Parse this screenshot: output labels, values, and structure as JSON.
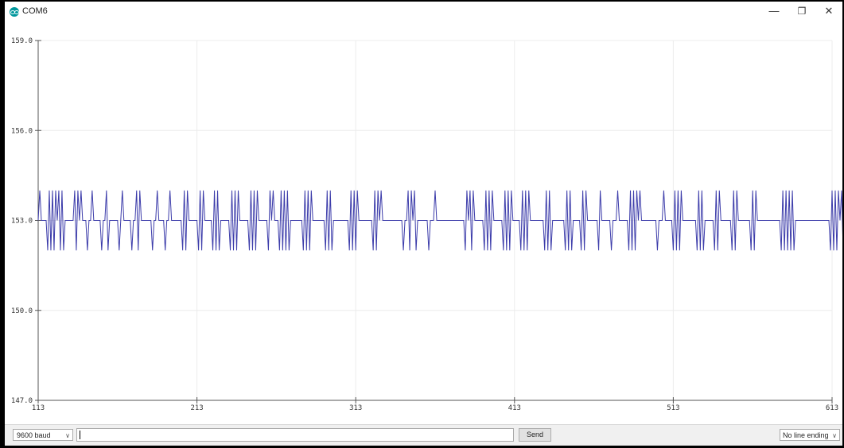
{
  "window": {
    "title": "COM6",
    "minimize_glyph": "—",
    "restore_glyph": "❐",
    "close_glyph": "✕"
  },
  "chart_data": {
    "type": "line",
    "title": "",
    "xlabel": "",
    "ylabel": "",
    "xlim": [
      113,
      613
    ],
    "ylim": [
      147.0,
      159.0
    ],
    "x_ticks": [
      "113",
      "213",
      "313",
      "413",
      "513",
      "613"
    ],
    "y_ticks": [
      "159.0",
      "156.0",
      "153.0",
      "150.0",
      "147.0"
    ],
    "grid": true,
    "series": [
      {
        "color": "#3c3caa",
        "x_start": 113,
        "x_step": 1,
        "values": [
          153,
          154,
          153,
          153,
          153,
          153,
          152,
          154,
          152,
          154,
          152,
          154,
          153,
          154,
          152,
          154,
          152,
          153,
          153,
          153,
          153,
          153,
          153,
          154,
          152,
          154,
          153,
          154,
          153,
          153,
          153,
          152,
          153,
          153,
          154,
          153,
          153,
          153,
          153,
          153,
          152,
          153,
          153,
          154,
          152,
          153,
          153,
          153,
          153,
          153,
          153,
          152,
          153,
          154,
          153,
          153,
          153,
          153,
          153,
          152,
          153,
          153,
          154,
          152,
          154,
          153,
          153,
          153,
          153,
          153,
          153,
          153,
          152,
          153,
          153,
          154,
          153,
          153,
          153,
          153,
          152,
          153,
          153,
          154,
          153,
          153,
          153,
          153,
          153,
          153,
          153,
          152,
          154,
          152,
          154,
          153,
          153,
          153,
          153,
          153,
          153,
          152,
          154,
          152,
          154,
          153,
          153,
          153,
          153,
          153,
          152,
          154,
          152,
          154,
          152,
          153,
          153,
          153,
          153,
          153,
          153,
          152,
          154,
          152,
          154,
          152,
          154,
          153,
          153,
          153,
          153,
          153,
          153,
          152,
          154,
          152,
          154,
          152,
          154,
          153,
          153,
          153,
          153,
          153,
          153,
          152,
          154,
          153,
          154,
          153,
          153,
          153,
          152,
          154,
          152,
          154,
          152,
          154,
          152,
          153,
          153,
          153,
          153,
          153,
          153,
          153,
          153,
          152,
          154,
          152,
          154,
          152,
          154,
          153,
          153,
          153,
          153,
          153,
          153,
          153,
          153,
          152,
          154,
          152,
          154,
          152,
          153,
          153,
          153,
          153,
          153,
          153,
          153,
          153,
          153,
          153,
          152,
          154,
          152,
          154,
          152,
          154,
          153,
          153,
          153,
          153,
          153,
          153,
          153,
          153,
          153,
          152,
          154,
          152,
          154,
          153,
          154,
          153,
          153,
          153,
          153,
          153,
          153,
          153,
          153,
          153,
          153,
          153,
          153,
          153,
          152,
          153,
          153,
          154,
          152,
          154,
          153,
          154,
          152,
          153,
          153,
          153,
          153,
          153,
          153,
          153,
          152,
          153,
          153,
          153,
          154,
          153,
          153,
          153,
          153,
          153,
          153,
          153,
          153,
          153,
          153,
          153,
          153,
          153,
          153,
          153,
          153,
          153,
          153,
          152,
          154,
          153,
          154,
          152,
          154,
          153,
          153,
          153,
          153,
          153,
          153,
          152,
          154,
          152,
          154,
          152,
          154,
          153,
          153,
          153,
          153,
          153,
          153,
          152,
          154,
          152,
          154,
          152,
          154,
          153,
          153,
          153,
          153,
          153,
          152,
          154,
          152,
          154,
          152,
          154,
          153,
          153,
          153,
          153,
          153,
          153,
          153,
          153,
          153,
          152,
          154,
          152,
          154,
          152,
          153,
          153,
          153,
          153,
          153,
          153,
          153,
          153,
          152,
          154,
          152,
          154,
          152,
          153,
          153,
          153,
          153,
          153,
          152,
          154,
          152,
          154,
          153,
          153,
          153,
          153,
          153,
          153,
          153,
          152,
          154,
          153,
          153,
          153,
          153,
          153,
          153,
          152,
          153,
          153,
          153,
          154,
          153,
          153,
          153,
          153,
          153,
          153,
          152,
          154,
          152,
          154,
          152,
          154,
          153,
          154,
          153,
          153,
          153,
          153,
          153,
          153,
          153,
          153,
          153,
          153,
          152,
          153,
          153,
          153,
          154,
          153,
          153,
          153,
          153,
          153,
          152,
          154,
          152,
          154,
          152,
          154,
          153,
          153,
          153,
          153,
          153,
          153,
          153,
          153,
          153,
          152,
          154,
          152,
          154,
          152,
          153,
          153,
          153,
          153,
          153,
          153,
          152,
          154,
          152,
          154,
          153,
          153,
          153,
          153,
          153,
          153,
          153,
          152,
          154,
          152,
          154,
          153,
          153,
          153,
          153,
          153,
          153,
          153,
          153,
          152,
          154,
          152,
          154,
          153,
          153,
          153,
          153,
          153,
          153,
          153,
          153,
          153,
          153,
          153,
          153,
          153,
          153,
          153,
          152,
          154,
          152,
          154,
          152,
          154,
          152,
          154,
          152,
          153,
          153,
          153,
          153,
          153,
          153,
          153,
          153,
          153,
          153,
          153,
          153,
          153,
          153,
          153,
          153,
          153,
          153,
          153,
          153,
          153,
          153,
          152,
          154,
          152,
          154,
          152,
          154,
          153,
          154,
          152,
          153
        ]
      }
    ]
  },
  "bottom_bar": {
    "baud": "9600 baud",
    "send_input_value": "",
    "send_label": "Send",
    "line_ending": "No line ending",
    "chevron_glyph": "∨"
  },
  "colors": {
    "series": "#3c3caa",
    "grid": "#ececec",
    "axis": "#555555"
  }
}
